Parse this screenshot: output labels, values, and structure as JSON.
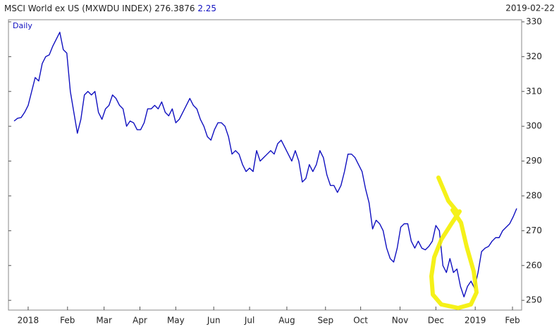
{
  "chart_data": {
    "type": "line",
    "title": "MSCI World ex US (MXWDU INDEX)",
    "last_value": "276.3876",
    "change": "2.25",
    "date": "2019-02-22",
    "period": "Daily",
    "series": [
      {
        "name": "MXWDU INDEX",
        "color": "#1010c0",
        "values": [
          301.5,
          302.3,
          302.5,
          304,
          306,
          310,
          314,
          313,
          318,
          320,
          320.5,
          323,
          325,
          327,
          322,
          321,
          310,
          304,
          298,
          302,
          309,
          310,
          309,
          310,
          304,
          302,
          305,
          306,
          309,
          308,
          306,
          305,
          300,
          301.5,
          301,
          299,
          299,
          301,
          305,
          305,
          306,
          305,
          307,
          304,
          303,
          305,
          301,
          302,
          304,
          306,
          308,
          306,
          305,
          302,
          300,
          297,
          296,
          299,
          301,
          301,
          300,
          297,
          292,
          293,
          292,
          289,
          287,
          288,
          287,
          293,
          290,
          291,
          292,
          293,
          292,
          295,
          296,
          294,
          292,
          290,
          293,
          290,
          284,
          285,
          289,
          287,
          289,
          293,
          291,
          286,
          283,
          283,
          281,
          283,
          287,
          292,
          292,
          291,
          289,
          287,
          282,
          278,
          270.5,
          273,
          272,
          270,
          265,
          262,
          261,
          265,
          271,
          272,
          272,
          267,
          265,
          267,
          265,
          264.5,
          265.5,
          267,
          271.5,
          270,
          260,
          258,
          262,
          258,
          259,
          254,
          251,
          254,
          255.5,
          253.5,
          258,
          264,
          265,
          265.5,
          267,
          268,
          268,
          270,
          271,
          272,
          274,
          276.4
        ]
      }
    ],
    "xlim": [
      0,
      143
    ],
    "xticks": [
      {
        "value": 4,
        "label": "2018"
      },
      {
        "value": 15.2,
        "label": "Feb"
      },
      {
        "value": 25.6,
        "label": "Mar"
      },
      {
        "value": 35.8,
        "label": "Apr"
      },
      {
        "value": 46,
        "label": "May"
      },
      {
        "value": 56.8,
        "label": "Jun"
      },
      {
        "value": 67,
        "label": "Jul"
      },
      {
        "value": 77.6,
        "label": "Aug"
      },
      {
        "value": 88.6,
        "label": "Sep"
      },
      {
        "value": 98.6,
        "label": "Oct"
      },
      {
        "value": 109.8,
        "label": "Nov"
      },
      {
        "value": 120,
        "label": "Dec"
      },
      {
        "value": 131.2,
        "label": "2019"
      },
      {
        "value": 141.8,
        "label": "Feb"
      }
    ],
    "ylim": [
      247.2,
      330.6
    ],
    "yticks": [
      250,
      260,
      270,
      280,
      290,
      300,
      310,
      320,
      330
    ]
  }
}
